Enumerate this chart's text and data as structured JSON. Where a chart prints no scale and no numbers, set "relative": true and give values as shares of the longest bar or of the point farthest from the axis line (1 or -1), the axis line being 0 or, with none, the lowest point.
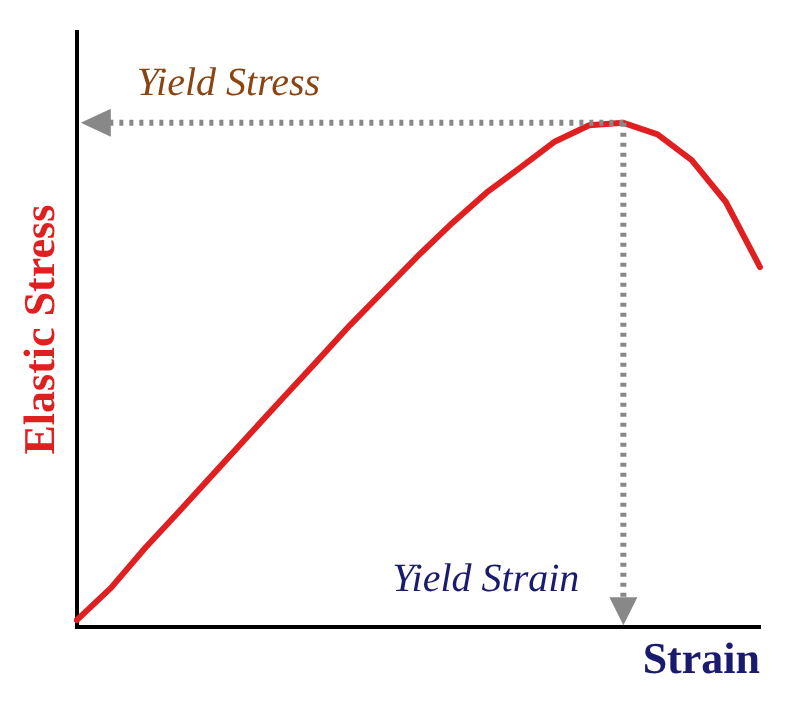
{
  "chart_data": {
    "type": "line",
    "xlabel": "Strain",
    "ylabel": "Elastic Stress",
    "relative": true,
    "grid": false,
    "legend": false,
    "marker": "none",
    "line_style": "solid",
    "categories": [
      null,
      null,
      null,
      null,
      null,
      null,
      null,
      null,
      null,
      null,
      null,
      null,
      null,
      null,
      null,
      null,
      null,
      null,
      null,
      null,
      null
    ],
    "series": [
      {
        "color": "#e02020",
        "values": [
          0.014,
          0.078,
          0.157,
          0.23,
          0.304,
          0.378,
          0.452,
          0.525,
          0.599,
          0.668,
          0.737,
          0.802,
          0.862,
          0.912,
          0.963,
          0.995,
          1,
          0.977,
          0.926,
          0.843,
          0.714
        ]
      }
    ],
    "annotations": [
      "Yield Stress",
      "Yield Strain"
    ]
  }
}
